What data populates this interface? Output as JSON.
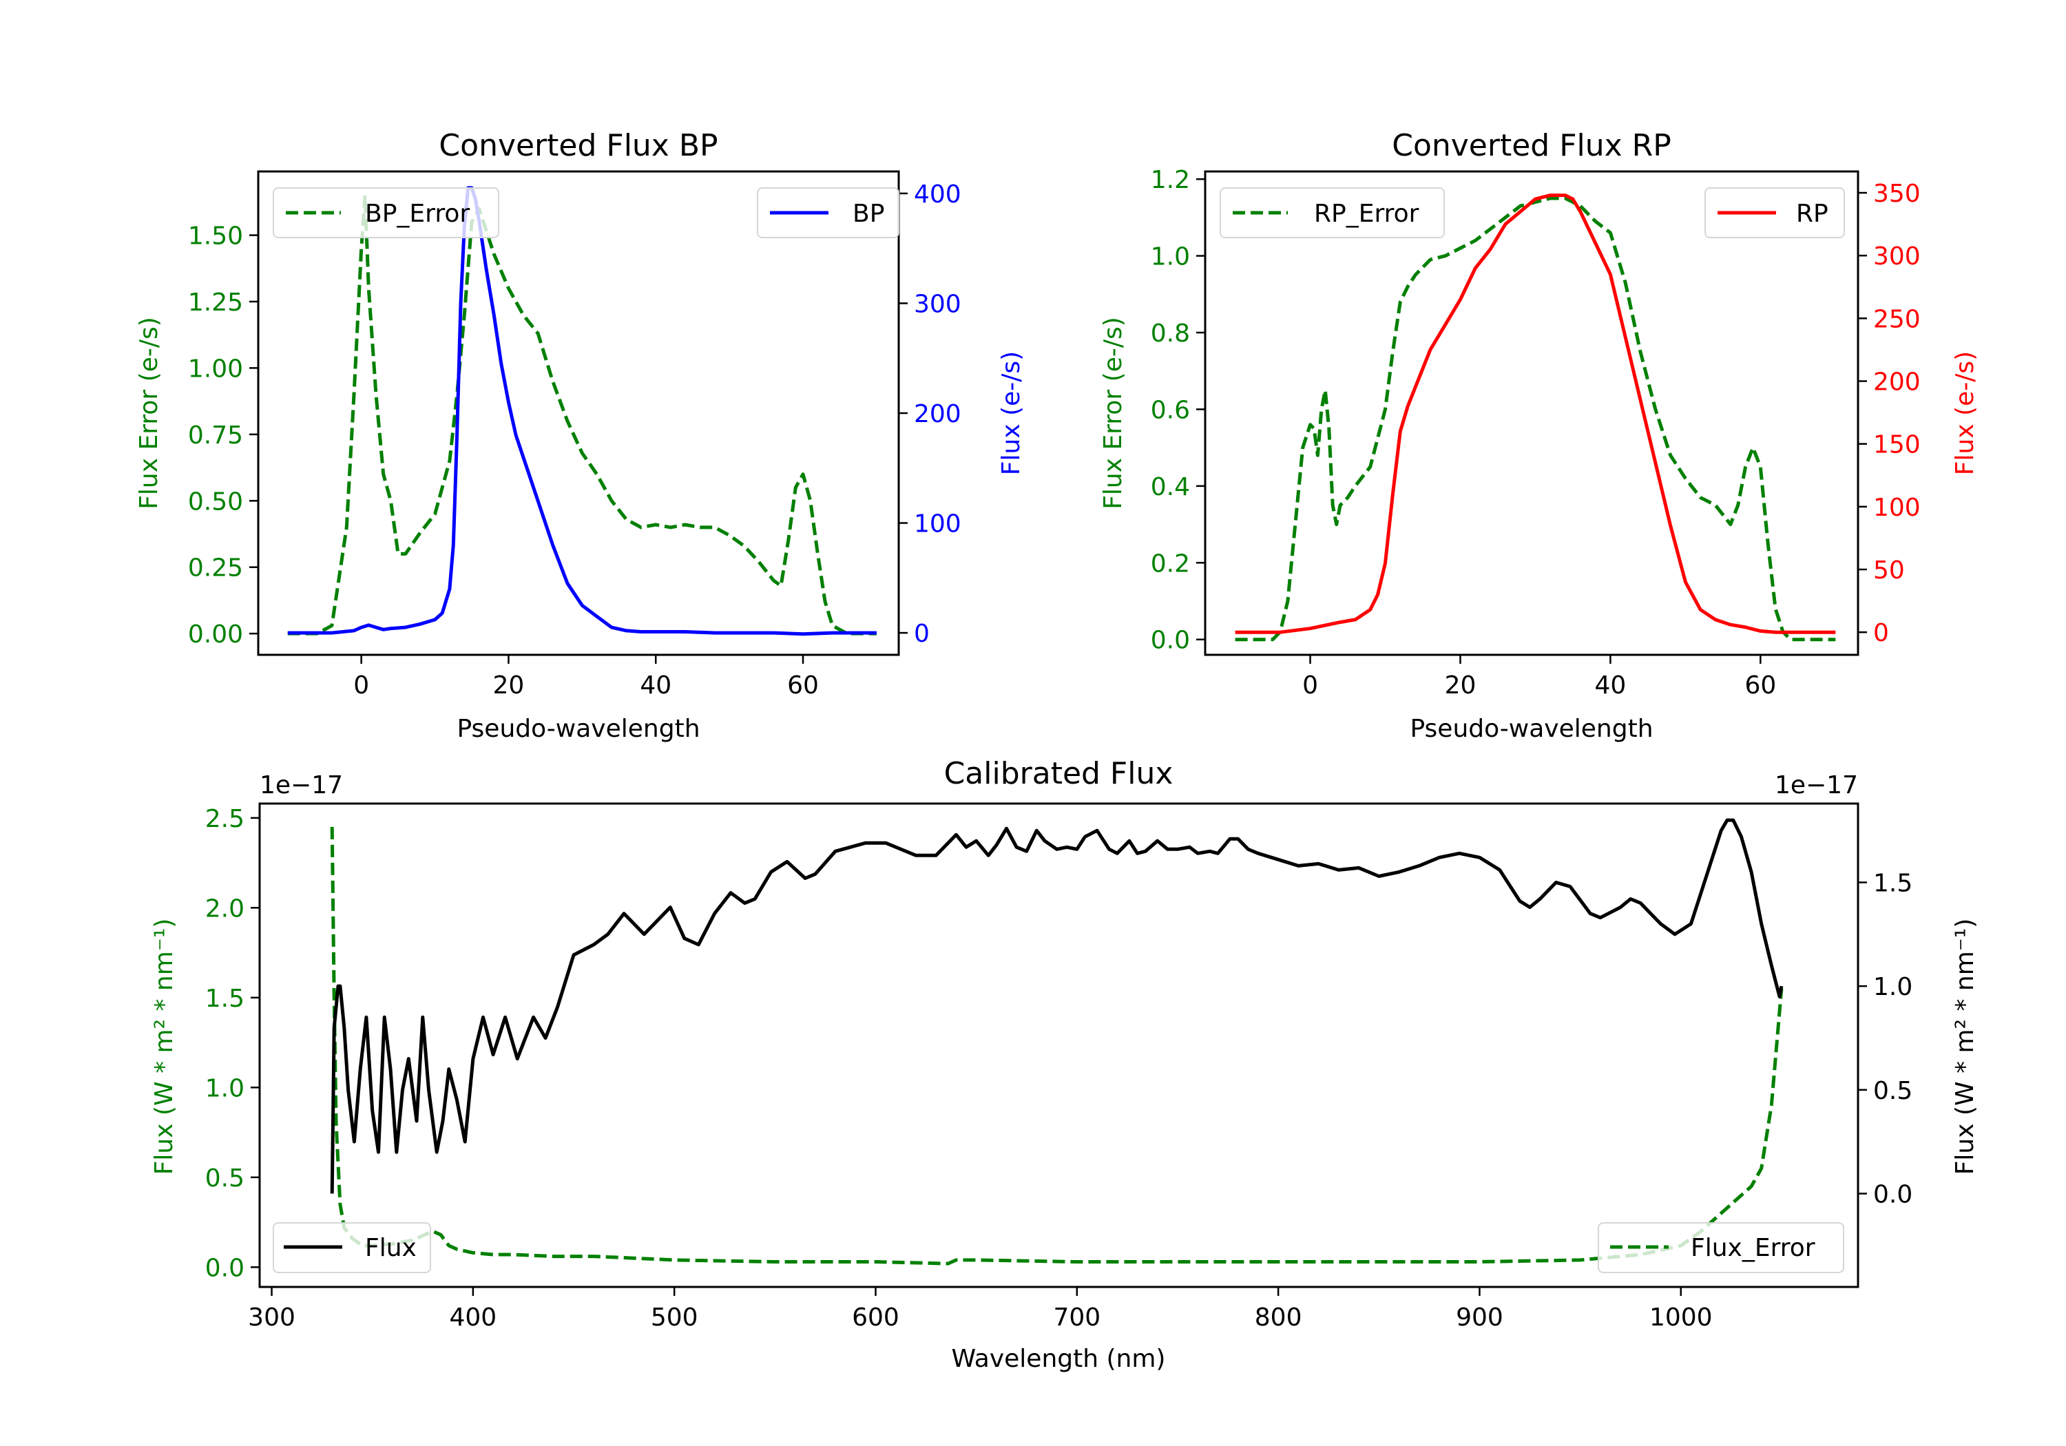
{
  "figure": {
    "colors": {
      "green": "#008000",
      "blue": "#0000ff",
      "red": "#ff0000",
      "black": "#000000"
    }
  },
  "chart_data": [
    {
      "id": "bp",
      "type": "line",
      "title": "Converted Flux BP",
      "xlabel": "Pseudo-wavelength",
      "ylabel_left": "Flux Error (e-/s)",
      "ylabel_right": "Flux (e-/s)",
      "xlim": [
        -14,
        73
      ],
      "xticks": [
        0,
        20,
        40,
        60
      ],
      "ylim_left": [
        -0.08,
        1.74
      ],
      "yticks_left": [
        "0.00",
        "0.25",
        "0.50",
        "0.75",
        "1.00",
        "1.25",
        "1.50"
      ],
      "ylim_right": [
        -20,
        420
      ],
      "yticks_right": [
        "0",
        "100",
        "200",
        "300",
        "400"
      ],
      "legend_left": {
        "label": "BP_Error",
        "placement": "upper-left"
      },
      "legend_right": {
        "label": "BP",
        "placement": "upper-right"
      },
      "series": [
        {
          "name": "BP_Error",
          "axis": "left",
          "color": "#008000",
          "style": "dashed",
          "x": [
            -10,
            -6,
            -4,
            -2,
            -1,
            0,
            0.5,
            1,
            2,
            3,
            4,
            5,
            6,
            8,
            10,
            11,
            12,
            13,
            14,
            15,
            16,
            18,
            20,
            22,
            24,
            26,
            28,
            30,
            32,
            34,
            36,
            38,
            40,
            42,
            44,
            46,
            48,
            50,
            52,
            54,
            56,
            57,
            58,
            59,
            60,
            61,
            62,
            63,
            64,
            66,
            70
          ],
          "y": [
            0,
            0,
            0.03,
            0.4,
            0.9,
            1.45,
            1.65,
            1.3,
            0.9,
            0.6,
            0.5,
            0.3,
            0.3,
            0.38,
            0.45,
            0.55,
            0.65,
            0.9,
            1.2,
            1.55,
            1.6,
            1.43,
            1.3,
            1.2,
            1.13,
            0.95,
            0.8,
            0.68,
            0.6,
            0.5,
            0.43,
            0.4,
            0.41,
            0.4,
            0.41,
            0.4,
            0.4,
            0.37,
            0.33,
            0.27,
            0.2,
            0.18,
            0.35,
            0.55,
            0.6,
            0.5,
            0.3,
            0.12,
            0.03,
            0,
            0
          ]
        },
        {
          "name": "BP",
          "axis": "right",
          "color": "#0000ff",
          "style": "solid",
          "x": [
            -10,
            -4,
            -1,
            0,
            1,
            2,
            3,
            4,
            6,
            8,
            10,
            11,
            12,
            12.5,
            13,
            13.5,
            14,
            14.5,
            15,
            15.5,
            16,
            17,
            18,
            19,
            20,
            21,
            22,
            24,
            26,
            28,
            30,
            32,
            34,
            36,
            38,
            40,
            44,
            48,
            52,
            56,
            60,
            64,
            70
          ],
          "y": [
            0,
            0,
            2,
            5,
            7,
            5,
            3,
            4,
            5,
            8,
            12,
            18,
            40,
            80,
            180,
            300,
            370,
            405,
            405,
            395,
            375,
            330,
            290,
            245,
            210,
            180,
            160,
            120,
            80,
            45,
            25,
            15,
            5,
            2,
            1,
            1,
            1,
            0,
            0,
            0,
            -1,
            0,
            0
          ]
        }
      ]
    },
    {
      "id": "rp",
      "type": "line",
      "title": "Converted Flux RP",
      "xlabel": "Pseudo-wavelength",
      "ylabel_left": "Flux Error (e-/s)",
      "ylabel_right": "Flux (e-/s)",
      "xlim": [
        -14,
        73
      ],
      "xticks": [
        0,
        20,
        40,
        60
      ],
      "ylim_left": [
        -0.04,
        1.22
      ],
      "yticks_left": [
        "0.0",
        "0.2",
        "0.4",
        "0.6",
        "0.8",
        "1.0",
        "1.2"
      ],
      "ylim_right": [
        -18,
        367
      ],
      "yticks_right": [
        "0",
        "50",
        "100",
        "150",
        "200",
        "250",
        "300",
        "350"
      ],
      "legend_left": {
        "label": "RP_Error",
        "placement": "upper-left"
      },
      "legend_right": {
        "label": "RP",
        "placement": "upper-right"
      },
      "series": [
        {
          "name": "RP_Error",
          "axis": "left",
          "color": "#008000",
          "style": "dashed",
          "x": [
            -10,
            -5,
            -4,
            -3,
            -2,
            -1,
            0,
            0.5,
            1,
            1.5,
            2,
            2.5,
            3,
            3.5,
            4,
            5,
            6,
            8,
            10,
            11,
            12,
            13,
            14,
            16,
            18,
            20,
            22,
            24,
            26,
            28,
            30,
            32,
            34,
            36,
            38,
            40,
            42,
            44,
            46,
            48,
            50,
            52,
            54,
            56,
            57,
            58,
            59,
            60,
            61,
            62,
            63,
            64,
            66,
            70
          ],
          "y": [
            0,
            0,
            0.02,
            0.1,
            0.3,
            0.5,
            0.56,
            0.55,
            0.48,
            0.6,
            0.65,
            0.55,
            0.35,
            0.3,
            0.35,
            0.37,
            0.4,
            0.45,
            0.6,
            0.75,
            0.88,
            0.92,
            0.95,
            0.99,
            1.0,
            1.02,
            1.04,
            1.07,
            1.1,
            1.13,
            1.14,
            1.15,
            1.15,
            1.13,
            1.09,
            1.06,
            0.93,
            0.75,
            0.6,
            0.48,
            0.42,
            0.37,
            0.35,
            0.3,
            0.35,
            0.45,
            0.5,
            0.45,
            0.25,
            0.08,
            0.02,
            0,
            0,
            0
          ]
        },
        {
          "name": "RP",
          "axis": "right",
          "color": "#ff0000",
          "style": "solid",
          "x": [
            -10,
            -4,
            0,
            4,
            6,
            8,
            9,
            10,
            11,
            12,
            13,
            14,
            16,
            18,
            20,
            22,
            24,
            26,
            28,
            30,
            32,
            33,
            34,
            35,
            36,
            38,
            40,
            42,
            44,
            46,
            48,
            50,
            52,
            54,
            56,
            58,
            60,
            62,
            66,
            70
          ],
          "y": [
            0,
            0,
            3,
            8,
            10,
            18,
            30,
            55,
            110,
            160,
            180,
            195,
            225,
            245,
            265,
            290,
            305,
            325,
            335,
            345,
            348,
            348,
            348,
            345,
            335,
            310,
            285,
            235,
            185,
            135,
            85,
            40,
            18,
            10,
            6,
            4,
            1,
            0,
            0,
            0
          ]
        }
      ]
    },
    {
      "id": "calibrated",
      "type": "line",
      "title": "Calibrated Flux",
      "xlabel": "Wavelength (nm)",
      "ylabel_left": "Flux (W * m² * nm⁻¹)",
      "ylabel_right": "Flux (W * m² * nm⁻¹)",
      "offset_left": "1e−17",
      "offset_right": "1e−17",
      "xlim": [
        294,
        1088
      ],
      "xticks": [
        300,
        400,
        500,
        600,
        700,
        800,
        900,
        1000
      ],
      "ylim_left": [
        -0.11,
        2.58
      ],
      "yticks_left": [
        "0.0",
        "0.5",
        "1.0",
        "1.5",
        "2.0",
        "2.5"
      ],
      "ylim_right": [
        -0.45,
        1.88
      ],
      "yticks_right": [
        "0.0",
        "0.5",
        "1.0",
        "1.5"
      ],
      "legend_left": {
        "label": "Flux",
        "placement": "lower-left"
      },
      "legend_right": {
        "label": "Flux_Error",
        "placement": "lower-right"
      },
      "series": [
        {
          "name": "Flux_Error",
          "axis": "left",
          "color": "#008000",
          "style": "dashed",
          "x": [
            330,
            331,
            332,
            334,
            336,
            340,
            345,
            350,
            360,
            370,
            380,
            384,
            388,
            392,
            400,
            410,
            420,
            440,
            460,
            480,
            500,
            550,
            600,
            636,
            640,
            650,
            700,
            800,
            900,
            950,
            980,
            1000,
            1010,
            1020,
            1030,
            1035,
            1040,
            1045,
            1050
          ],
          "y": [
            2.45,
            1.5,
            0.8,
            0.35,
            0.22,
            0.16,
            0.12,
            0.12,
            0.13,
            0.15,
            0.2,
            0.18,
            0.12,
            0.1,
            0.08,
            0.07,
            0.07,
            0.06,
            0.06,
            0.05,
            0.04,
            0.03,
            0.03,
            0.02,
            0.04,
            0.04,
            0.03,
            0.03,
            0.03,
            0.04,
            0.07,
            0.12,
            0.2,
            0.3,
            0.4,
            0.45,
            0.55,
            0.9,
            1.55
          ]
        },
        {
          "name": "Flux",
          "axis": "right",
          "color": "#000000",
          "style": "solid",
          "x": [
            330,
            331,
            333,
            334,
            336,
            338,
            341,
            344,
            347,
            350,
            353,
            356,
            359,
            362,
            365,
            368,
            372,
            375,
            378,
            382,
            385,
            388,
            392,
            396,
            400,
            405,
            410,
            416,
            422,
            430,
            436,
            442,
            450,
            460,
            467,
            475,
            485,
            490,
            498,
            505,
            512,
            520,
            528,
            535,
            540,
            548,
            556,
            565,
            570,
            580,
            595,
            605,
            620,
            630,
            640,
            645,
            650,
            656,
            660,
            665,
            670,
            675,
            680,
            684,
            690,
            695,
            700,
            704,
            710,
            716,
            720,
            726,
            730,
            734,
            740,
            745,
            750,
            756,
            760,
            766,
            770,
            776,
            780,
            785,
            790,
            800,
            810,
            820,
            830,
            840,
            850,
            860,
            870,
            880,
            890,
            900,
            910,
            920,
            925,
            930,
            938,
            945,
            955,
            960,
            970,
            975,
            980,
            985,
            990,
            997,
            1005,
            1010,
            1015,
            1020,
            1023,
            1026,
            1030,
            1035,
            1040,
            1045,
            1049,
            1050
          ],
          "y": [
            0.0,
            0.8,
            1.0,
            1.0,
            0.8,
            0.5,
            0.25,
            0.6,
            0.85,
            0.4,
            0.2,
            0.85,
            0.6,
            0.2,
            0.5,
            0.65,
            0.35,
            0.85,
            0.5,
            0.2,
            0.35,
            0.6,
            0.45,
            0.25,
            0.65,
            0.85,
            0.67,
            0.85,
            0.65,
            0.85,
            0.75,
            0.9,
            1.15,
            1.2,
            1.25,
            1.35,
            1.25,
            1.3,
            1.38,
            1.23,
            1.2,
            1.35,
            1.45,
            1.4,
            1.42,
            1.55,
            1.6,
            1.52,
            1.54,
            1.65,
            1.69,
            1.69,
            1.63,
            1.63,
            1.73,
            1.67,
            1.7,
            1.63,
            1.68,
            1.76,
            1.67,
            1.65,
            1.75,
            1.7,
            1.66,
            1.67,
            1.66,
            1.72,
            1.75,
            1.66,
            1.64,
            1.7,
            1.64,
            1.65,
            1.7,
            1.66,
            1.66,
            1.67,
            1.64,
            1.65,
            1.64,
            1.71,
            1.71,
            1.66,
            1.64,
            1.61,
            1.58,
            1.59,
            1.56,
            1.57,
            1.53,
            1.55,
            1.58,
            1.62,
            1.64,
            1.62,
            1.56,
            1.41,
            1.38,
            1.42,
            1.5,
            1.48,
            1.35,
            1.33,
            1.38,
            1.42,
            1.4,
            1.35,
            1.3,
            1.25,
            1.3,
            1.45,
            1.6,
            1.75,
            1.8,
            1.8,
            1.72,
            1.55,
            1.3,
            1.1,
            0.95,
            1.0
          ]
        }
      ]
    }
  ]
}
